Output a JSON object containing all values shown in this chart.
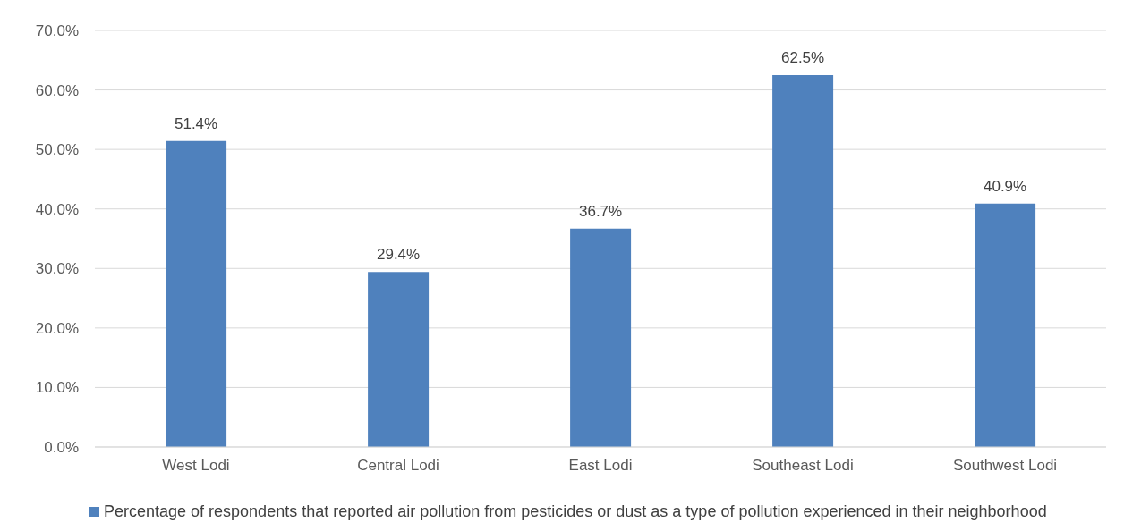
{
  "chart_data": {
    "type": "bar",
    "categories": [
      "West Lodi",
      "Central Lodi",
      "East Lodi",
      "Southeast Lodi",
      "Southwest Lodi"
    ],
    "series": [
      {
        "name": "Percentage of respondents that reported air pollution from pesticides or dust as a type of pollution experienced in their neighborhood",
        "color": "#4f81bd",
        "values": [
          51.4,
          29.4,
          36.7,
          62.5,
          40.9
        ],
        "value_labels": [
          "51.4%",
          "29.4%",
          "36.7%",
          "62.5%",
          "40.9%"
        ]
      }
    ],
    "ylim": [
      0,
      70
    ],
    "yticks": [
      {
        "value": 0,
        "label": "0.0%"
      },
      {
        "value": 10,
        "label": "10.0%"
      },
      {
        "value": 20,
        "label": "20.0%"
      },
      {
        "value": 30,
        "label": "30.0%"
      },
      {
        "value": 40,
        "label": "40.0%"
      },
      {
        "value": 50,
        "label": "50.0%"
      },
      {
        "value": 60,
        "label": "60.0%"
      },
      {
        "value": 70,
        "label": "70.0%"
      }
    ],
    "grid": "y",
    "legend": "bottom"
  }
}
